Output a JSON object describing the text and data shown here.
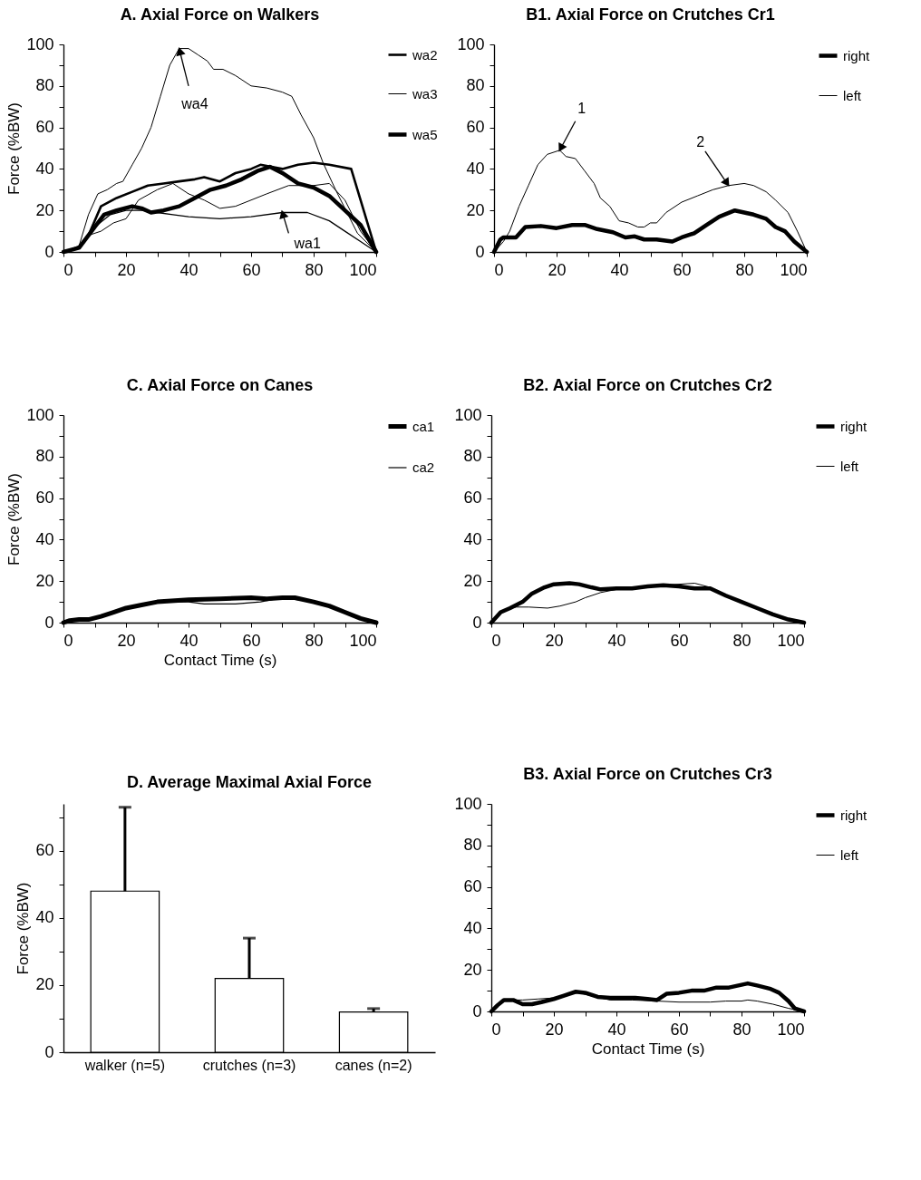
{
  "chart_data": [
    {
      "type": "line",
      "title": "A. Axial Force on Walkers",
      "ylabel": "Force (%BW)",
      "xlim": [
        0,
        100
      ],
      "ylim": [
        0,
        100
      ],
      "xticks": [
        0,
        {
          "value": 10,
          "label": null
        },
        20,
        {
          "value": 30,
          "label": null
        },
        40,
        {
          "value": 50,
          "label": null
        },
        60,
        {
          "value": 70,
          "label": null
        },
        80,
        {
          "value": 90,
          "label": null
        },
        100
      ],
      "yticks": [
        0,
        {
          "value": 10,
          "label": null
        },
        20,
        {
          "value": 30,
          "label": null
        },
        40,
        {
          "value": 50,
          "label": null
        },
        60,
        {
          "value": 70,
          "label": null
        },
        80,
        {
          "value": 90,
          "label": null
        },
        100
      ],
      "legend": "right",
      "series": [
        {
          "color": "#000000",
          "x": [
            0,
            5,
            10,
            15,
            20,
            25,
            30,
            35,
            40,
            50,
            60,
            70,
            78,
            85,
            90,
            95,
            100
          ],
          "values": [
            0,
            2,
            12,
            18,
            20,
            20,
            19,
            18,
            17,
            16,
            17,
            19,
            19,
            15,
            10,
            5,
            0
          ]
        },
        {
          "name": "wa2",
          "color": "#000000",
          "x": [
            0,
            5,
            8,
            12,
            17,
            22,
            27,
            32,
            37,
            42,
            45,
            50,
            55,
            60,
            63,
            70,
            75,
            80,
            85,
            92,
            96,
            100
          ],
          "values": [
            0,
            2,
            8,
            22,
            26,
            29,
            32,
            33,
            34,
            35,
            36,
            34,
            38,
            40,
            42,
            40,
            42,
            43,
            42,
            40,
            20,
            0
          ]
        },
        {
          "name": "wa3",
          "color": "#000000",
          "x": [
            0,
            5,
            8,
            12,
            16,
            20,
            24,
            30,
            35,
            40,
            45,
            50,
            55,
            60,
            65,
            72,
            80,
            85,
            90,
            95,
            100
          ],
          "values": [
            0,
            2,
            8,
            10,
            14,
            16,
            25,
            30,
            33,
            28,
            25,
            21,
            22,
            25,
            28,
            32,
            32,
            33,
            25,
            10,
            0
          ]
        },
        {
          "color": "#000000",
          "x": [
            0,
            5,
            8,
            11,
            14,
            17,
            19,
            22,
            25,
            28,
            31,
            34,
            37,
            40,
            43,
            46,
            48,
            51,
            55,
            60,
            65,
            70,
            73,
            76,
            80,
            83,
            87,
            91,
            94,
            100
          ],
          "values": [
            0,
            3,
            18,
            28,
            30,
            33,
            34,
            42,
            50,
            60,
            75,
            90,
            98,
            98,
            95,
            92,
            88,
            88,
            85,
            80,
            79,
            77,
            75,
            66,
            55,
            43,
            30,
            18,
            9,
            0
          ]
        },
        {
          "name": "wa5",
          "color": "#000000",
          "x": [
            0,
            5,
            10,
            13,
            17,
            22,
            25,
            28,
            32,
            37,
            42,
            47,
            52,
            57,
            62,
            66,
            70,
            75,
            80,
            85,
            90,
            95,
            100
          ],
          "values": [
            0,
            2,
            12,
            18,
            20,
            22,
            21,
            19,
            20,
            22,
            26,
            30,
            32,
            35,
            39,
            41,
            38,
            33,
            31,
            27,
            20,
            13,
            0
          ]
        }
      ],
      "annotations": [
        {
          "text": "wa4",
          "x": 37,
          "y": 98
        },
        {
          "text": "wa1",
          "x": 70,
          "y": 19
        }
      ]
    },
    {
      "type": "line",
      "title": "B1. Axial Force on Crutches Cr1",
      "xlim": [
        0,
        100
      ],
      "ylim": [
        0,
        100
      ],
      "xticks": [
        0,
        {
          "value": 10,
          "label": null
        },
        20,
        {
          "value": 30,
          "label": null
        },
        40,
        {
          "value": 50,
          "label": null
        },
        60,
        {
          "value": 70,
          "label": null
        },
        80,
        {
          "value": 90,
          "label": null
        },
        100
      ],
      "yticks": [
        0,
        {
          "value": 10,
          "label": null
        },
        20,
        {
          "value": 30,
          "label": null
        },
        40,
        {
          "value": 50,
          "label": null
        },
        60,
        {
          "value": 70,
          "label": null
        },
        80,
        {
          "value": 90,
          "label": null
        },
        100
      ],
      "legend": "right",
      "series": [
        {
          "name": "right",
          "color": "#000000",
          "x": [
            0,
            2,
            3,
            5,
            7,
            10,
            15,
            20,
            25,
            29,
            33,
            38,
            42,
            45,
            48,
            52,
            57,
            60,
            64,
            68,
            72,
            77,
            80,
            83,
            87,
            90,
            93,
            96,
            100
          ],
          "values": [
            0,
            6,
            7,
            7,
            7,
            12,
            12.5,
            11.5,
            13,
            13,
            11,
            9.5,
            7,
            7.5,
            6,
            6,
            5,
            7,
            9,
            13,
            17,
            20,
            19,
            18,
            16,
            12,
            10,
            5,
            0
          ]
        },
        {
          "name": "left",
          "color": "#000000",
          "x": [
            0,
            3,
            5,
            8,
            11,
            14,
            17,
            21,
            23,
            26,
            29,
            32,
            34,
            37,
            40,
            43,
            46,
            48,
            50,
            52,
            55,
            60,
            65,
            70,
            75,
            80,
            83,
            87,
            90,
            94,
            97,
            100
          ],
          "values": [
            0,
            5,
            10,
            22,
            32,
            42,
            47,
            49,
            46,
            45,
            39,
            33,
            26,
            22,
            15,
            14,
            12,
            12,
            14,
            14,
            19,
            24,
            27,
            30,
            32,
            33,
            32,
            29,
            25,
            19,
            10,
            0
          ]
        }
      ],
      "annotations": [
        {
          "text": "1",
          "x": 21,
          "y": 49
        },
        {
          "text": "2",
          "x": 75,
          "y": 32
        }
      ]
    },
    {
      "type": "line",
      "title": "C. Axial Force on Canes",
      "xlabel": "Contact Time (s)",
      "ylabel": "Force (%BW)",
      "xlim": [
        0,
        100
      ],
      "ylim": [
        0,
        100
      ],
      "xticks": [
        0,
        {
          "value": 10,
          "label": null
        },
        20,
        {
          "value": 30,
          "label": null
        },
        40,
        {
          "value": 50,
          "label": null
        },
        60,
        {
          "value": 70,
          "label": null
        },
        80,
        {
          "value": 90,
          "label": null
        },
        100
      ],
      "yticks": [
        0,
        {
          "value": 10,
          "label": null
        },
        20,
        {
          "value": 30,
          "label": null
        },
        40,
        {
          "value": 50,
          "label": null
        },
        60,
        {
          "value": 70,
          "label": null
        },
        80,
        {
          "value": 90,
          "label": null
        },
        100
      ],
      "legend": "right",
      "series": [
        {
          "name": "ca1",
          "color": "#000000",
          "x": [
            0,
            2,
            5,
            8,
            12,
            16,
            20,
            25,
            30,
            40,
            50,
            60,
            65,
            70,
            74,
            80,
            85,
            90,
            95,
            100
          ],
          "values": [
            0,
            1,
            1.5,
            1.5,
            3,
            5,
            7,
            8.5,
            10,
            11,
            11.5,
            12,
            11.5,
            12,
            12,
            10,
            8,
            5,
            2,
            0
          ]
        },
        {
          "name": "ca2",
          "color": "#000000",
          "x": [
            0,
            5,
            10,
            20,
            30,
            40,
            45,
            55,
            63,
            70,
            80,
            90,
            100
          ],
          "values": [
            0,
            1,
            2,
            7,
            10,
            10,
            9,
            9,
            10,
            12,
            10,
            5,
            0
          ]
        }
      ]
    },
    {
      "type": "line",
      "title": "B2. Axial Force on Crutches Cr2",
      "xlim": [
        0,
        100
      ],
      "ylim": [
        0,
        100
      ],
      "xticks": [
        0,
        {
          "value": 10,
          "label": null
        },
        20,
        {
          "value": 30,
          "label": null
        },
        40,
        {
          "value": 50,
          "label": null
        },
        60,
        {
          "value": 70,
          "label": null
        },
        80,
        {
          "value": 90,
          "label": null
        },
        100
      ],
      "yticks": [
        0,
        {
          "value": 10,
          "label": null
        },
        20,
        {
          "value": 30,
          "label": null
        },
        40,
        {
          "value": 50,
          "label": null
        },
        60,
        {
          "value": 70,
          "label": null
        },
        80,
        {
          "value": 90,
          "label": null
        },
        100
      ],
      "legend": "right",
      "series": [
        {
          "name": "right",
          "color": "#000000",
          "x": [
            0,
            3,
            6,
            10,
            13,
            17,
            20,
            25,
            28,
            32,
            35,
            40,
            45,
            50,
            55,
            60,
            65,
            70,
            75,
            80,
            85,
            90,
            95,
            100
          ],
          "values": [
            0,
            5,
            7,
            10,
            14,
            17,
            18.5,
            19,
            18.5,
            17,
            16,
            16.5,
            16.5,
            17.5,
            18,
            17.5,
            16.5,
            16.5,
            13,
            10,
            7,
            4,
            1.5,
            0
          ]
        },
        {
          "name": "left",
          "color": "#000000",
          "x": [
            0,
            3,
            6,
            8,
            12,
            18,
            22,
            27,
            30,
            35,
            40,
            45,
            50,
            55,
            60,
            65,
            70,
            75,
            80,
            85,
            90,
            95,
            100
          ],
          "values": [
            0,
            5,
            7,
            7.5,
            7.5,
            7,
            8,
            10,
            12,
            14.5,
            16,
            16.5,
            17.5,
            18,
            18.5,
            19,
            17,
            13,
            10,
            7,
            4,
            1.5,
            0
          ]
        }
      ]
    },
    {
      "type": "bar",
      "title": "D. Average Maximal Axial Force",
      "ylabel": "Force (%BW)",
      "ylim": [
        0,
        74
      ],
      "yticks": [
        0,
        {
          "value": 10,
          "label": null
        },
        20,
        {
          "value": 30,
          "label": null
        },
        40,
        {
          "value": 50,
          "label": null
        },
        60,
        {
          "value": 70,
          "label": null
        }
      ],
      "categories": [
        "walker (n=5)",
        "crutches (n=3)",
        "canes (n=2)"
      ],
      "values": [
        48,
        22,
        12
      ],
      "colors": [
        "#ffffff",
        "#ffffff",
        "#ffffff"
      ],
      "errors": [
        [
          48,
          73
        ],
        [
          22,
          34
        ],
        [
          12,
          13
        ]
      ]
    },
    {
      "type": "line",
      "title": "B3. Axial Force on Crutches Cr3",
      "xlabel": "Contact Time (s)",
      "xlim": [
        0,
        100
      ],
      "ylim": [
        0,
        100
      ],
      "xticks": [
        0,
        {
          "value": 10,
          "label": null
        },
        20,
        {
          "value": 30,
          "label": null
        },
        40,
        {
          "value": 50,
          "label": null
        },
        60,
        {
          "value": 70,
          "label": null
        },
        80,
        {
          "value": 90,
          "label": null
        },
        100
      ],
      "yticks": [
        0,
        {
          "value": 10,
          "label": null
        },
        20,
        {
          "value": 30,
          "label": null
        },
        40,
        {
          "value": 50,
          "label": null
        },
        60,
        {
          "value": 70,
          "label": null
        },
        80,
        {
          "value": 90,
          "label": null
        },
        100
      ],
      "legend": "right",
      "series": [
        {
          "name": "right",
          "color": "#000000",
          "x": [
            0,
            2,
            4,
            7,
            10,
            13,
            16,
            20,
            23,
            27,
            30,
            34,
            38,
            42,
            46,
            50,
            53,
            56,
            60,
            64,
            68,
            72,
            76,
            79,
            82,
            85,
            89,
            92,
            95,
            97,
            100
          ],
          "values": [
            0,
            3,
            5.5,
            5.5,
            3.5,
            3.5,
            4.5,
            6,
            7.5,
            9.5,
            9,
            7,
            6.5,
            6.5,
            6.5,
            6,
            5.5,
            8.5,
            9,
            10,
            10,
            11.5,
            11.5,
            12.5,
            13.5,
            12.5,
            11,
            9,
            5,
            1.5,
            0
          ]
        },
        {
          "name": "left",
          "color": "#000000",
          "x": [
            0,
            3,
            5,
            10,
            15,
            20,
            25,
            28,
            32,
            38,
            45,
            53,
            60,
            70,
            75,
            80,
            82,
            85,
            90,
            95,
            100
          ],
          "values": [
            0,
            4,
            5.5,
            5.5,
            6,
            6.5,
            8.5,
            9,
            7.5,
            5.5,
            5.5,
            5,
            4.5,
            4.5,
            5,
            5,
            5.5,
            5,
            3.5,
            1.5,
            0
          ]
        }
      ]
    }
  ]
}
